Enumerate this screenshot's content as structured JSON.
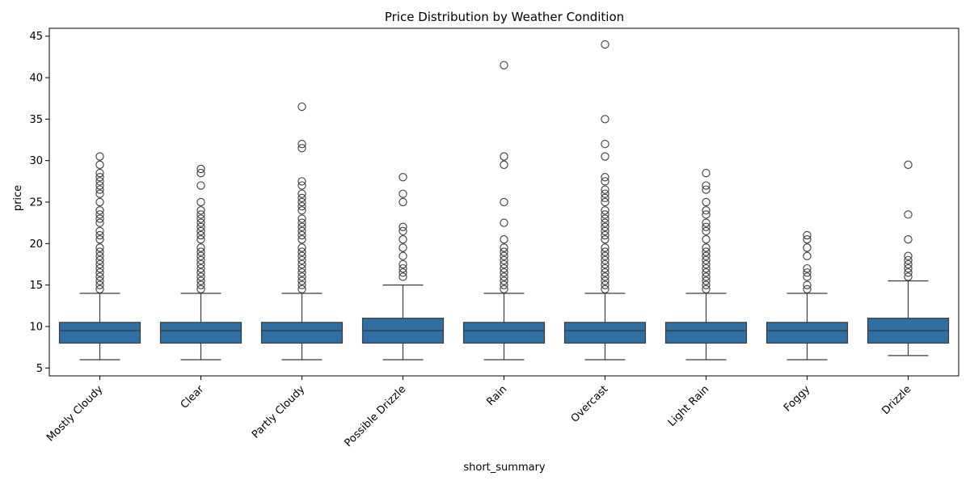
{
  "chart_data": {
    "type": "box",
    "title": "Price Distribution by Weather Condition",
    "xlabel": "short_summary",
    "ylabel": "price",
    "ylim": [
      4.05,
      45.95
    ],
    "yticks": [
      "5",
      "10",
      "15",
      "20",
      "25",
      "30",
      "35",
      "40",
      "45"
    ],
    "grid": false,
    "box_color": "#2f6fa3",
    "categories": [
      "Mostly Cloudy",
      "Clear",
      "Partly Cloudy",
      "Possible Drizzle",
      "Rain",
      "Overcast",
      "Light Rain",
      "Foggy",
      "Drizzle"
    ],
    "boxes": [
      {
        "whisker_low": 6,
        "q1": 8,
        "median": 9.5,
        "q3": 10.5,
        "whisker_high": 14,
        "outliers": [
          14.5,
          15,
          15.5,
          16,
          16.5,
          17,
          17.5,
          18,
          18.5,
          19,
          19.5,
          20.5,
          21,
          21.5,
          22.5,
          23,
          23.5,
          24,
          25,
          26,
          26.5,
          27,
          27.5,
          28,
          28.5,
          29.5,
          30.5
        ]
      },
      {
        "whisker_low": 6,
        "q1": 8,
        "median": 9.5,
        "q3": 10.5,
        "whisker_high": 14,
        "outliers": [
          14.5,
          15,
          15.5,
          16,
          16.5,
          17,
          17.5,
          18,
          18.5,
          19,
          19.5,
          20.5,
          21,
          21.5,
          22,
          22.5,
          23,
          23.5,
          24,
          25,
          27,
          28.5,
          29
        ]
      },
      {
        "whisker_low": 6,
        "q1": 8,
        "median": 9.5,
        "q3": 10.5,
        "whisker_high": 14,
        "outliers": [
          14.5,
          15,
          15.5,
          16,
          16.5,
          17,
          17.5,
          18,
          18.5,
          19,
          19.5,
          20.5,
          21,
          21.5,
          22,
          22.5,
          23,
          24,
          24.5,
          25,
          25.5,
          26,
          27,
          27.5,
          31.5,
          32,
          36.5
        ]
      },
      {
        "whisker_low": 6,
        "q1": 8,
        "median": 9.5,
        "q3": 11,
        "whisker_high": 15,
        "outliers": [
          16,
          16.5,
          17,
          17.5,
          18.5,
          19.5,
          20.5,
          21.5,
          22,
          25,
          26,
          28
        ]
      },
      {
        "whisker_low": 6,
        "q1": 8,
        "median": 9.5,
        "q3": 10.5,
        "whisker_high": 14,
        "outliers": [
          14.5,
          15,
          15.5,
          16,
          16.5,
          17,
          17.5,
          18,
          18.5,
          19,
          19.5,
          20.5,
          22.5,
          25,
          29.5,
          30.5,
          41.5
        ]
      },
      {
        "whisker_low": 6,
        "q1": 8,
        "median": 9.5,
        "q3": 10.5,
        "whisker_high": 14,
        "outliers": [
          14.5,
          15,
          15.5,
          16,
          16.5,
          17,
          17.5,
          18,
          18.5,
          19,
          19.5,
          20.5,
          21,
          21.5,
          22,
          22.5,
          23,
          23.5,
          24,
          25,
          25.5,
          26,
          26.5,
          27.5,
          28,
          30.5,
          32,
          35,
          44
        ]
      },
      {
        "whisker_low": 6,
        "q1": 8,
        "median": 9.5,
        "q3": 10.5,
        "whisker_high": 14,
        "outliers": [
          14.5,
          15,
          15.5,
          16,
          16.5,
          17,
          17.5,
          18,
          18.5,
          19,
          19.5,
          20.5,
          21.5,
          22,
          22.5,
          23.5,
          24,
          25,
          26.5,
          27,
          28.5
        ]
      },
      {
        "whisker_low": 6,
        "q1": 8,
        "median": 9.5,
        "q3": 10.5,
        "whisker_high": 14,
        "outliers": [
          14.5,
          15,
          16,
          16.5,
          17,
          18.5,
          19.5,
          20.5,
          21
        ]
      },
      {
        "whisker_low": 6.5,
        "q1": 8,
        "median": 9.5,
        "q3": 11,
        "whisker_high": 15.5,
        "outliers": [
          16,
          16.5,
          17,
          17.5,
          18,
          18.5,
          20.5,
          23.5,
          29.5
        ]
      }
    ]
  }
}
